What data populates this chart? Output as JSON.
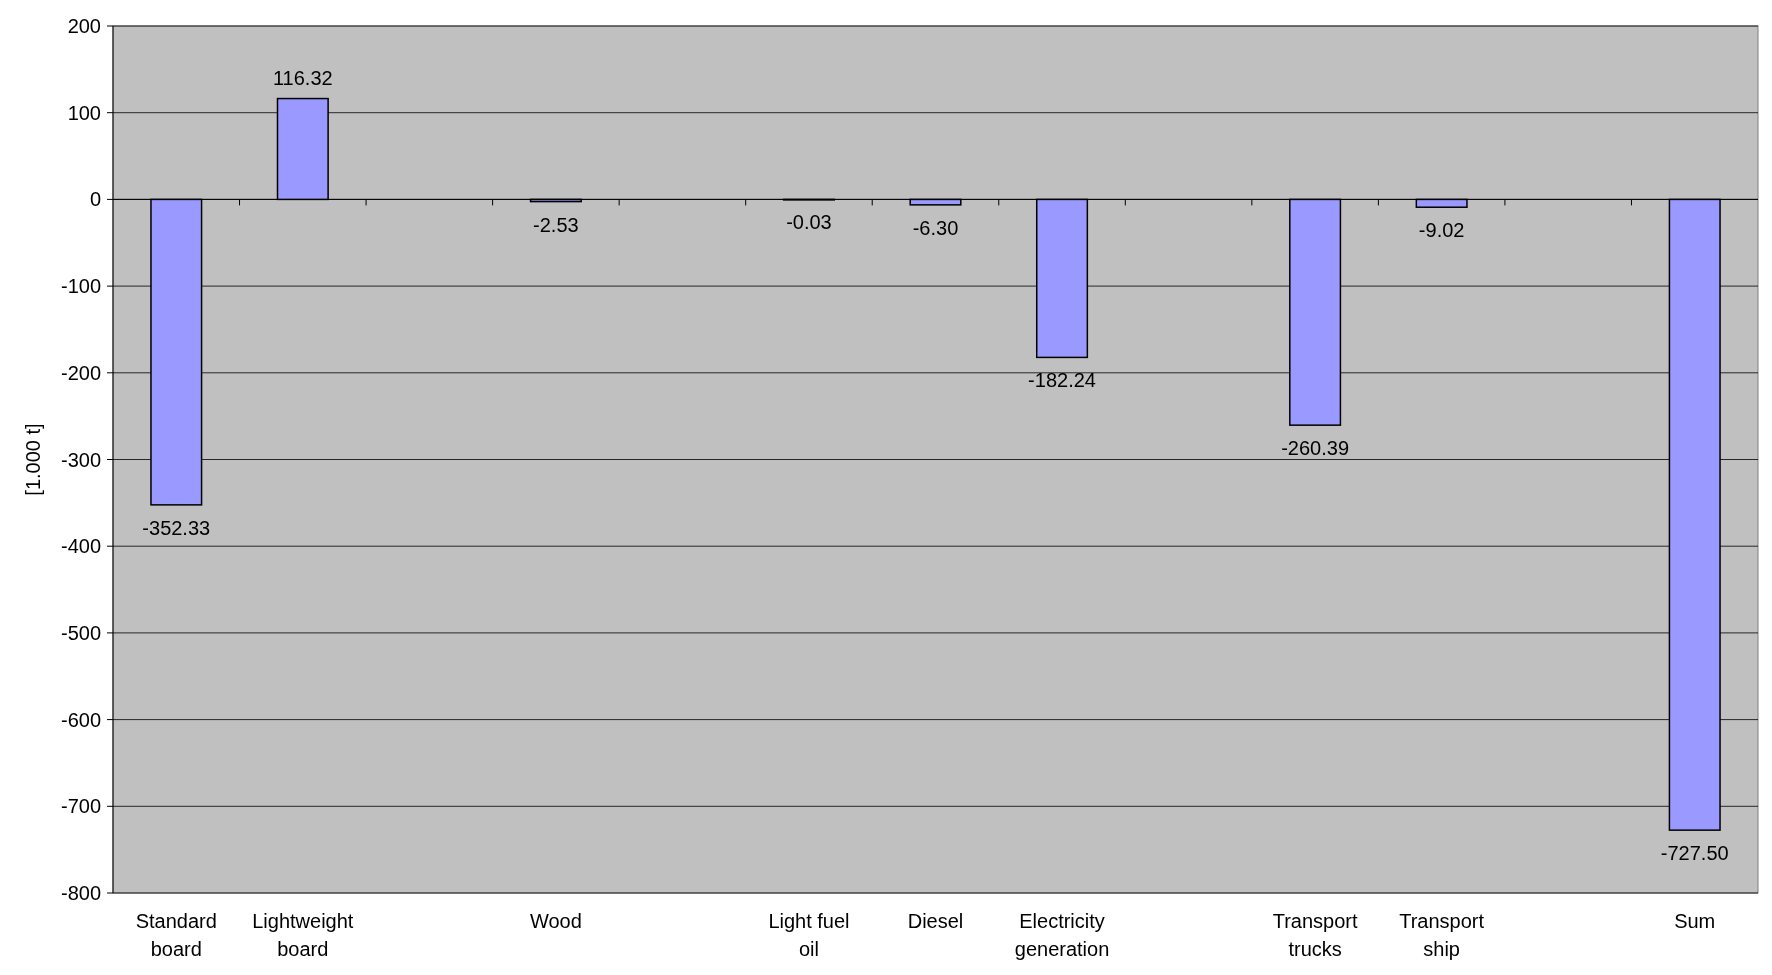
{
  "chart_data": {
    "type": "bar",
    "ylabel": "[1.000 t]",
    "categories": [
      "Standard board",
      "Lightweight board",
      null,
      "Wood",
      null,
      "Light fuel oil",
      "Diesel",
      "Electricity generation",
      null,
      "Transport trucks",
      "Transport ship",
      null,
      "Sum"
    ],
    "values": [
      -352.33,
      116.32,
      null,
      -2.53,
      null,
      -0.03,
      -6.3,
      -182.24,
      null,
      -260.39,
      -9.02,
      null,
      -727.5
    ],
    "value_labels": [
      "-352.33",
      "116.32",
      null,
      "-2.53",
      null,
      "-0.03",
      "-6.30",
      "-182.24",
      null,
      "-260.39",
      "-9.02",
      null,
      "-727.50"
    ],
    "color": "#9999ff",
    "ylim": [
      -800,
      200
    ],
    "yticks": [
      -800,
      -700,
      -600,
      -500,
      -400,
      -300,
      -200,
      -100,
      0,
      100,
      200
    ],
    "grid": "y"
  }
}
